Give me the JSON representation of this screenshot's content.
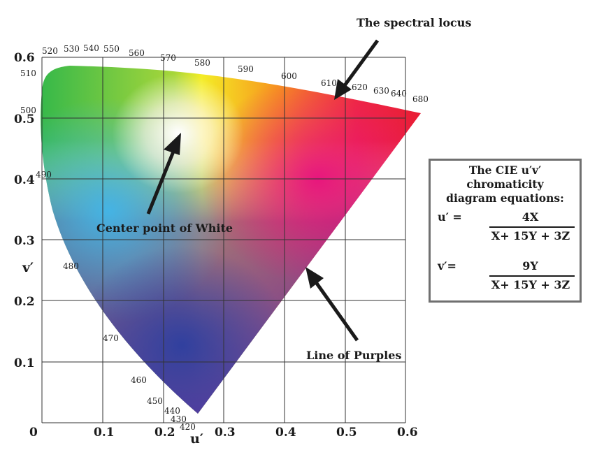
{
  "diagram": {
    "y_ticks": [
      "0.6",
      "0.5",
      "0.4",
      "0.3",
      "0.2",
      "0.1",
      "0"
    ],
    "x_ticks": [
      "0.1",
      "0.2",
      "0.3",
      "0.4",
      "0.5",
      "0.6"
    ],
    "axis_label_u": "u′",
    "axis_label_v": "v′",
    "wavelength_labels": [
      "520",
      "530",
      "540",
      "550",
      "560",
      "570",
      "580",
      "590",
      "600",
      "610",
      "620",
      "630",
      "640",
      "680",
      "510",
      "500",
      "490",
      "480",
      "470",
      "460",
      "450",
      "440",
      "430",
      "420"
    ],
    "annotations": {
      "spectral_locus": "The spectral locus",
      "white_point": "Center point of White",
      "line_of_purples": "Line of Purples"
    },
    "colors": {
      "green": "#3fbf2a",
      "yellow": "#f3ec22",
      "red": "#ec1c2e",
      "magenta": "#e5127e",
      "blue": "#2e3f9e",
      "cyan": "#41b6ea",
      "purple": "#7a3a9a"
    }
  },
  "equations": {
    "title_lines": [
      "The CIE u′v′",
      "chromaticity",
      "diagram equations:"
    ],
    "u_lhs": "u′ =",
    "u_numerator": "4X",
    "u_denominator": "X+ 15Y + 3Z",
    "v_lhs": "v′=",
    "v_numerator": "9Y",
    "v_denominator": "X+ 15Y + 3Z"
  }
}
